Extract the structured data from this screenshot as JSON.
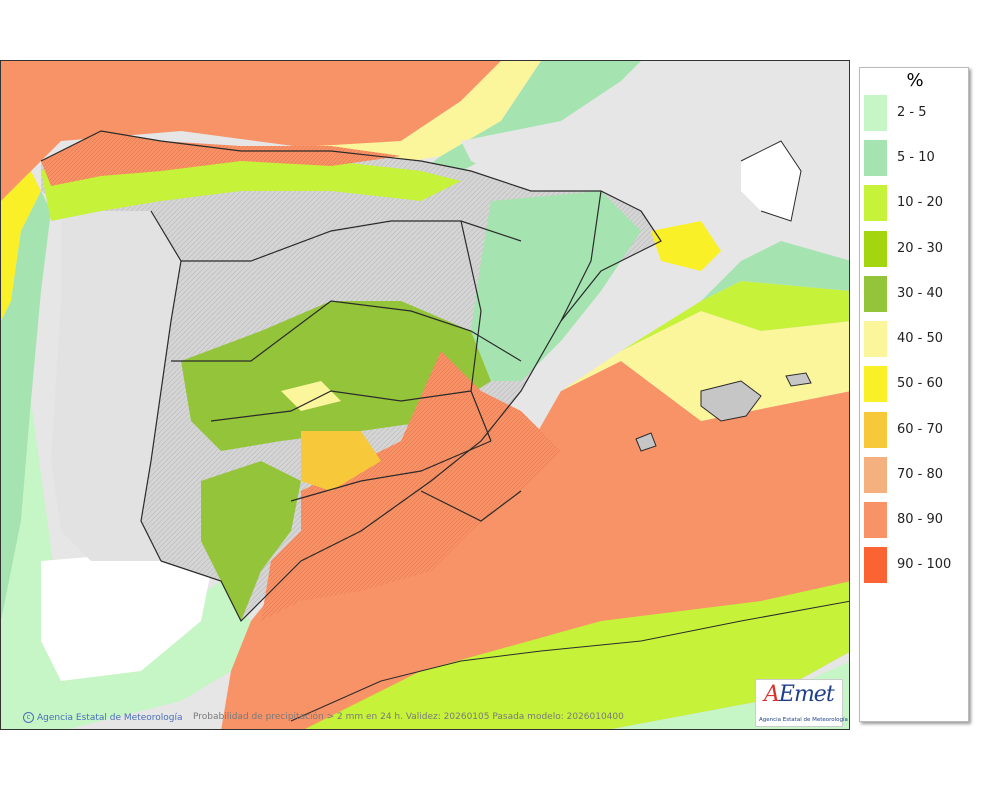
{
  "legend": {
    "title": "%",
    "items": [
      {
        "label": "2 - 5",
        "color": "#c6f5c6"
      },
      {
        "label": "5 - 10",
        "color": "#a5e4b0"
      },
      {
        "label": "10 - 20",
        "color": "#c6f23a"
      },
      {
        "label": "20 - 30",
        "color": "#a4d60f"
      },
      {
        "label": "30 - 40",
        "color": "#94c43a"
      },
      {
        "label": "40 - 50",
        "color": "#fbf59b"
      },
      {
        "label": "50 - 60",
        "color": "#faf028"
      },
      {
        "label": "60 - 70",
        "color": "#f6c83a"
      },
      {
        "label": "70 - 80",
        "color": "#f4b07f"
      },
      {
        "label": "80 - 90",
        "color": "#f89267"
      },
      {
        "label": "90 - 100",
        "color": "#fb6432"
      }
    ]
  },
  "map": {
    "credit": "Agencia Estatal de Meteorología",
    "footer_text": "Probabilidad de precipitación > 2 mm en 24 h. Validez: 20260105 Pasada modelo: 2026010400",
    "logo_text": "AEmet",
    "logo_subtitle": "Agencia Estatal de Meteorología",
    "colors": {
      "no_data": "#e6e6e6",
      "land_dry": "#d2d2d2",
      "sea_light": "#ffffff",
      "border": "#2b2b2b"
    }
  }
}
